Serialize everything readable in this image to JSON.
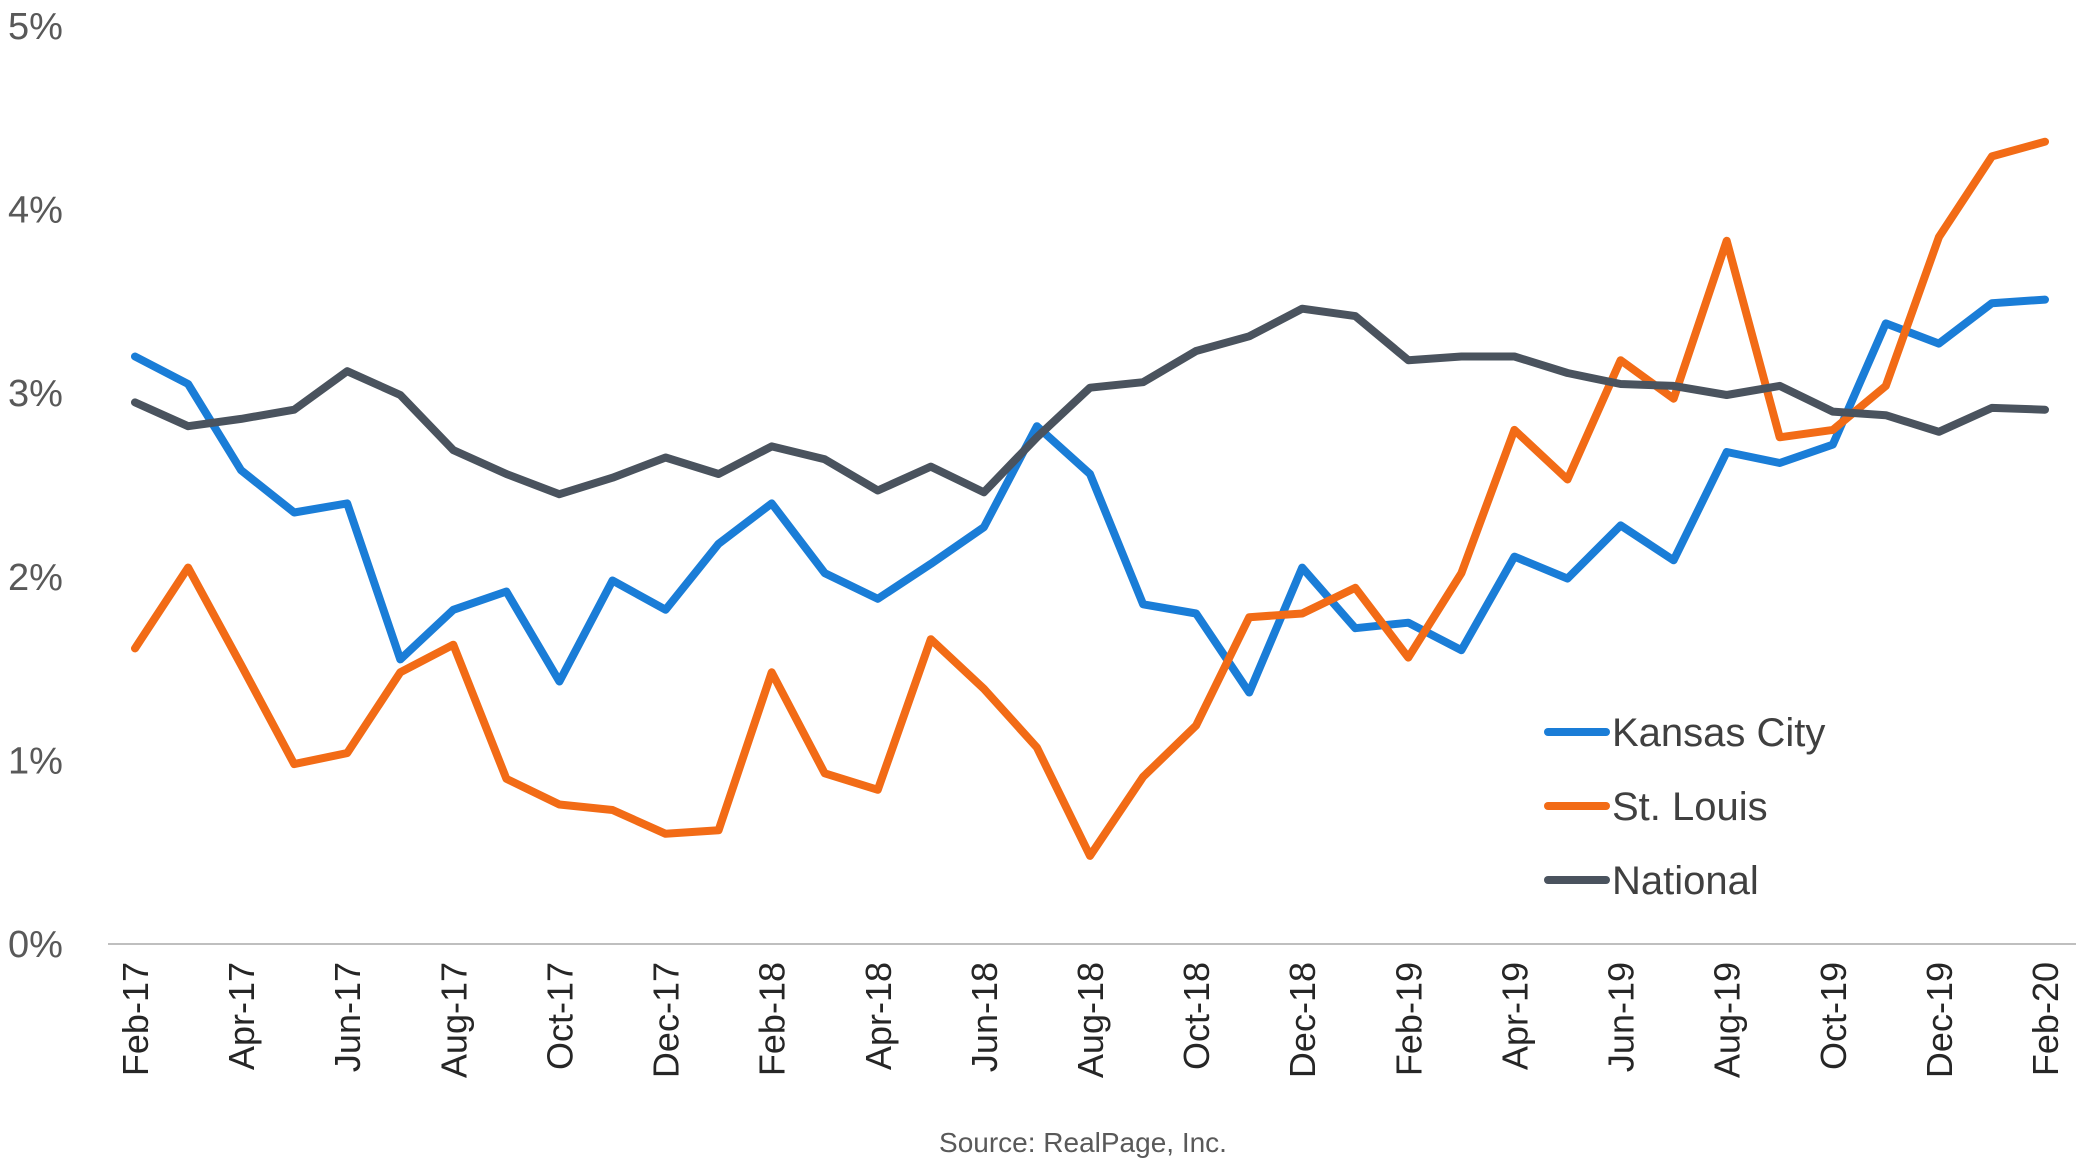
{
  "chart_data": {
    "type": "line",
    "title": "",
    "xlabel": "",
    "ylabel": "",
    "ylim": [
      0,
      5
    ],
    "y_ticks": [
      "0%",
      "1%",
      "2%",
      "3%",
      "4%",
      "5%"
    ],
    "x": [
      "Feb-17",
      "Mar-17",
      "Apr-17",
      "May-17",
      "Jun-17",
      "Jul-17",
      "Aug-17",
      "Sep-17",
      "Oct-17",
      "Nov-17",
      "Dec-17",
      "Jan-18",
      "Feb-18",
      "Mar-18",
      "Apr-18",
      "May-18",
      "Jun-18",
      "Jul-18",
      "Aug-18",
      "Sep-18",
      "Oct-18",
      "Nov-18",
      "Dec-18",
      "Jan-19",
      "Feb-19",
      "Mar-19",
      "Apr-19",
      "May-19",
      "Jun-19",
      "Jul-19",
      "Aug-19",
      "Sep-19",
      "Oct-19",
      "Nov-19",
      "Dec-19",
      "Jan-20",
      "Feb-20"
    ],
    "x_tick_labels": [
      "Feb-17",
      "Apr-17",
      "Jun-17",
      "Aug-17",
      "Oct-17",
      "Dec-17",
      "Feb-18",
      "Apr-18",
      "Jun-18",
      "Aug-18",
      "Oct-18",
      "Dec-18",
      "Feb-19",
      "Apr-19",
      "Jun-19",
      "Aug-19",
      "Oct-19",
      "Dec-19",
      "Feb-20"
    ],
    "series": [
      {
        "name": "Kansas City",
        "color": "#1a7dd7",
        "values": [
          3.2,
          3.05,
          2.58,
          2.35,
          2.4,
          1.55,
          1.82,
          1.92,
          1.43,
          1.98,
          1.82,
          2.18,
          2.4,
          2.02,
          1.88,
          2.07,
          2.27,
          2.82,
          2.56,
          1.85,
          1.8,
          1.37,
          2.05,
          1.72,
          1.75,
          1.6,
          2.11,
          1.99,
          2.28,
          2.09,
          2.68,
          2.62,
          2.72,
          3.38,
          3.27,
          3.49,
          3.51
        ]
      },
      {
        "name": "St. Louis",
        "color": "#f26b16",
        "values": [
          1.61,
          2.05,
          1.52,
          0.98,
          1.04,
          1.48,
          1.63,
          0.9,
          0.76,
          0.73,
          0.6,
          0.62,
          1.48,
          0.93,
          0.84,
          1.66,
          1.39,
          1.07,
          0.48,
          0.91,
          1.19,
          1.78,
          1.8,
          1.94,
          1.56,
          2.02,
          2.8,
          2.53,
          3.18,
          2.97,
          3.83,
          2.76,
          2.8,
          3.04,
          3.85,
          4.29,
          4.37
        ]
      },
      {
        "name": "National",
        "color": "#4a535e",
        "values": [
          2.95,
          2.82,
          2.86,
          2.91,
          3.12,
          2.99,
          2.69,
          2.56,
          2.45,
          2.54,
          2.65,
          2.56,
          2.71,
          2.64,
          2.47,
          2.6,
          2.46,
          2.76,
          3.03,
          3.06,
          3.23,
          3.31,
          3.46,
          3.42,
          3.18,
          3.2,
          3.2,
          3.11,
          3.05,
          3.04,
          2.99,
          3.04,
          2.9,
          2.88,
          2.79,
          2.92,
          2.91
        ]
      }
    ],
    "legend_position": "right-lower",
    "grid": false,
    "source": "Source: RealPage, Inc."
  }
}
